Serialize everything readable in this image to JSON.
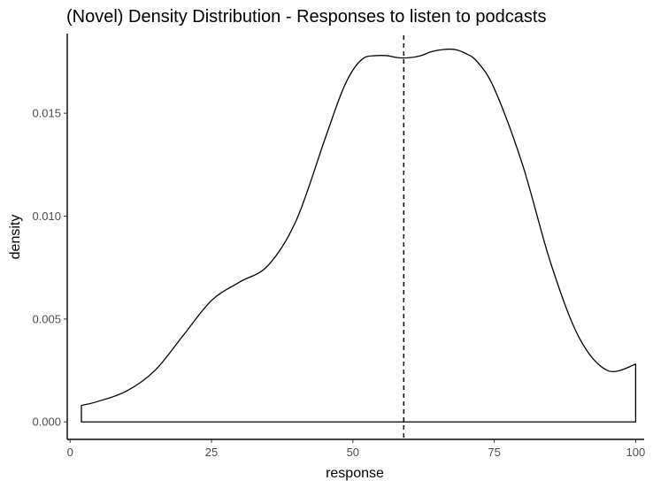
{
  "chart_data": {
    "type": "area",
    "title": "(Novel) Density Distribution - Responses to listen to podcasts",
    "xlabel": "response",
    "ylabel": "density",
    "xlim": [
      -0.5,
      101.5
    ],
    "ylim": [
      -0.00085,
      0.01913
    ],
    "x_ticks": [
      0,
      25,
      50,
      75,
      100
    ],
    "x_tick_labels": [
      "0",
      "25",
      "50",
      "75",
      "100"
    ],
    "y_ticks": [
      0,
      0.005,
      0.01,
      0.015
    ],
    "y_tick_labels": [
      "0.000",
      "0.005",
      "0.010",
      "0.015"
    ],
    "grid": false,
    "legend": "none",
    "series": [
      {
        "x": [
          2,
          5,
          10,
          15,
          20,
          25,
          30,
          35,
          40,
          45,
          48,
          50,
          52,
          54,
          56,
          58,
          60,
          62,
          64,
          66,
          68,
          70,
          72,
          75,
          80,
          85,
          90,
          95,
          100
        ],
        "y": [
          0.0008,
          0.001,
          0.0015,
          0.0025,
          0.0042,
          0.0059,
          0.0068,
          0.0076,
          0.0098,
          0.0137,
          0.016,
          0.0171,
          0.0177,
          0.0178,
          0.0178,
          0.0177,
          0.0177,
          0.0178,
          0.018,
          0.0181,
          0.0181,
          0.0179,
          0.0175,
          0.0162,
          0.0125,
          0.0077,
          0.0041,
          0.0025,
          0.0028
        ]
      }
    ],
    "reference_line": {
      "orientation": "vertical",
      "x": 59,
      "style": "dashed"
    },
    "colors": {
      "line": "#000000",
      "fill": "none",
      "axis": "#000000",
      "tick_text": "#4d4d4d"
    }
  }
}
